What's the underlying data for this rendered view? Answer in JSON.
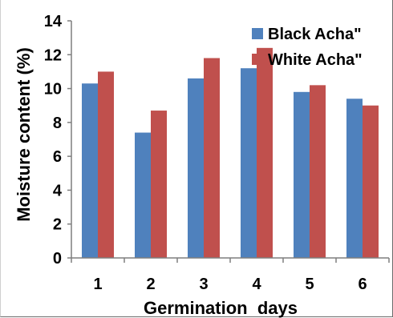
{
  "chart_data": {
    "type": "bar",
    "categories": [
      "1",
      "2",
      "3",
      "4",
      "5",
      "6"
    ],
    "series": [
      {
        "name": "Black Acha\"",
        "color": "#4f81bd",
        "values": [
          10.3,
          7.4,
          10.6,
          11.2,
          9.8,
          9.4
        ]
      },
      {
        "name": "White Acha\"",
        "color": "#c0504d",
        "values": [
          11.0,
          8.7,
          11.8,
          12.4,
          10.2,
          9.0
        ]
      }
    ],
    "title": "",
    "xlabel": "Germination  days",
    "ylabel": "Moisture content (%)",
    "ylim": [
      0,
      14
    ],
    "yticks": [
      "0",
      "2",
      "4",
      "6",
      "8",
      "10",
      "12",
      "14"
    ],
    "grid": false,
    "legend_position": "top-right"
  }
}
